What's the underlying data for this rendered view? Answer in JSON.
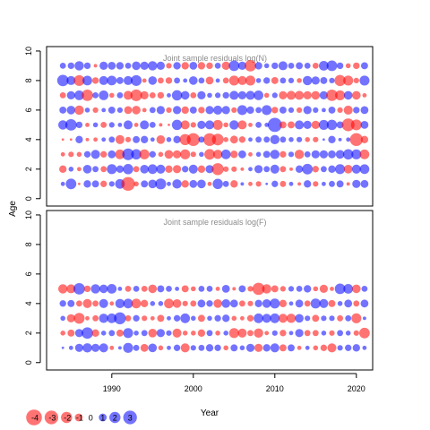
{
  "chart_data": [
    {
      "type": "scatter",
      "subtype": "bubble",
      "title": "Joint sample residuals log(N)",
      "xlabel": "Year",
      "ylabel": "Age",
      "xlim": [
        1982,
        2022
      ],
      "ylim": [
        -0.5,
        10.3
      ],
      "yticks": [
        0,
        2,
        4,
        6,
        8,
        10
      ],
      "years": [
        1984,
        2021
      ],
      "ages": [
        1,
        2,
        3,
        4,
        5,
        6,
        7,
        8,
        9
      ],
      "grid": false,
      "note": "residual matrix by age (rows) and year (columns); positive=blue, negative=red, bubble area proportional to magnitude",
      "residuals": [
        [
          0.3,
          1.8,
          -0.1,
          0.9,
          0.8,
          -0.7,
          0.5,
          1.5,
          -3.0,
          -0.4,
          0.8,
          1.2,
          1.9,
          0.3,
          1.4,
          -0.9,
          1.0,
          1.2,
          -0.3,
          1.7,
          0.6,
          -0.9,
          0.2,
          -0.3,
          -0.5,
          0.1,
          0.7,
          -0.6,
          0.3,
          -0.2,
          0.9,
          -0.5,
          0.3,
          0.6,
          0.8,
          -0.2,
          1.1,
          1.0
        ],
        [
          -0.9,
          0.4,
          -0.3,
          1.2,
          0.6,
          -0.6,
          1.6,
          0.9,
          1.7,
          -0.6,
          1.2,
          1.5,
          1.3,
          -0.9,
          -1.1,
          0.7,
          1.3,
          -0.9,
          1.1,
          -2.3,
          -0.5,
          -0.5,
          -0.2,
          0.3,
          1.1,
          0.6,
          1.3,
          -0.6,
          -0.2,
          0.9,
          1.8,
          -0.7,
          0.6,
          0.9,
          1.6,
          -1.2,
          1.3,
          1.5
        ],
        [
          -0.3,
          -0.5,
          -0.4,
          0.7,
          1.3,
          -0.7,
          1.0,
          -1.5,
          2.2,
          1.7,
          -1.6,
          0.7,
          -0.4,
          -1.2,
          -1.1,
          -1.6,
          -0.5,
          0.4,
          -1.8,
          -1.4,
          1.5,
          -0.9,
          1.0,
          -0.3,
          0.4,
          0.8,
          1.4,
          -0.7,
          0.5,
          -1.4,
          0.6,
          1.1,
          1.1,
          1.0,
          1.2,
          1.7,
          1.6,
          -1.5
        ],
        [
          -0.1,
          -0.1,
          0.9,
          -0.2,
          -0.3,
          0.3,
          0.6,
          -1.3,
          -0.5,
          0.8,
          0.9,
          0.3,
          -1.2,
          0.4,
          0.9,
          -2.0,
          -2.7,
          0.6,
          -2.6,
          -2.2,
          -0.4,
          -1.0,
          -0.7,
          0.3,
          0.6,
          0.6,
          1.4,
          0.6,
          0.4,
          0.5,
          -0.4,
          -0.5,
          0.1,
          0.9,
          0.2,
          0.3,
          -2.7,
          -0.9
        ],
        [
          1.4,
          2.1,
          0.7,
          -0.3,
          0.4,
          -0.6,
          0.5,
          0.3,
          1.3,
          -0.3,
          1.3,
          0.6,
          -0.2,
          -0.1,
          1.7,
          -1.3,
          -0.5,
          1.1,
          1.3,
          -1.6,
          -0.4,
          1.4,
          -1.3,
          -0.3,
          0.6,
          0.3,
          3.2,
          -0.8,
          -0.8,
          1.3,
          1.1,
          -1.1,
          1.6,
          1.7,
          0.8,
          -2.6,
          -1.9,
          1.0
        ],
        [
          0.8,
          1.2,
          -1.4,
          0.4,
          -0.5,
          0.3,
          0.8,
          0.5,
          -1.0,
          -1.2,
          -0.3,
          0.6,
          1.1,
          -0.5,
          1.1,
          -0.9,
          0.8,
          -0.7,
          1.1,
          1.3,
          1.1,
          -0.5,
          1.6,
          0.9,
          0.6,
          1.6,
          -0.7,
          0.8,
          0.5,
          -0.5,
          1.1,
          0.5,
          0.3,
          0.8,
          -0.5,
          -1.3,
          0.7,
          1.0
        ],
        [
          -0.6,
          1.1,
          1.5,
          -2.1,
          0.6,
          1.5,
          -0.4,
          0.6,
          -1.3,
          -2.2,
          -1.1,
          -0.6,
          -0.7,
          0.3,
          1.7,
          1.2,
          -0.6,
          1.1,
          0.4,
          0.5,
          0.7,
          1.3,
          1.1,
          1.3,
          1.5,
          -0.4,
          0.5,
          -1.1,
          -1.3,
          -1.3,
          -1.1,
          -1.2,
          1.1,
          -2.1,
          -1.6,
          1.2,
          -1.2,
          -0.3
        ],
        [
          2.1,
          1.3,
          -1.9,
          1.5,
          -0.7,
          1.3,
          1.5,
          0.8,
          1.3,
          1.9,
          -0.3,
          1.2,
          -0.6,
          -0.7,
          0.6,
          0.3,
          1.2,
          0.6,
          -1.0,
          0.3,
          -0.6,
          -1.6,
          -1.3,
          -1.6,
          0.4,
          0.7,
          -0.8,
          0.6,
          0.5,
          -0.4,
          1.4,
          1.1,
          0.8,
          0.5,
          -2.0,
          -1.6,
          -0.5,
          1.6
        ],
        [
          0.6,
          0.7,
          1.4,
          0.7,
          -0.2,
          1.1,
          1.0,
          0.9,
          0.6,
          1.2,
          1.1,
          1.4,
          1.1,
          -0.5,
          0.9,
          -0.9,
          1.0,
          -0.9,
          -0.7,
          0.6,
          -1.1,
          1.8,
          1.1,
          -2.1,
          0.9,
          0.4,
          0.7,
          1.3,
          0.6,
          0.8,
          0.6,
          -0.6,
          1.5,
          1.8,
          0.7,
          -0.4,
          -0.7,
          0.8
        ]
      ]
    },
    {
      "type": "scatter",
      "subtype": "bubble",
      "title": "Joint sample residuals log(F)",
      "xlabel": "Year",
      "ylabel": "Age",
      "xlim": [
        1982,
        2022
      ],
      "ylim": [
        -0.5,
        10.3
      ],
      "xticks": [
        1990,
        2000,
        2010,
        2020
      ],
      "yticks": [
        0,
        2,
        4,
        6,
        8,
        10
      ],
      "years": [
        1984,
        2021
      ],
      "ages": [
        1,
        2,
        3,
        4,
        5
      ],
      "grid": false,
      "note": "residual matrix by age (rows) and year (columns); positive=blue, negative=red",
      "residuals": [
        [
          0.1,
          0.3,
          1.1,
          1.4,
          1.1,
          1.3,
          -0.3,
          0.2,
          1.6,
          0.6,
          -1.0,
          1.2,
          -0.4,
          0.3,
          0.7,
          -1.3,
          0.5,
          0.6,
          0.9,
          0.7,
          -0.4,
          0.8,
          0.4,
          1.1,
          -1.1,
          0.9,
          1.3,
          -0.8,
          0.8,
          -0.3,
          0.3,
          -0.4,
          -0.7,
          -1.3,
          0.5,
          0.7,
          0.9,
          0.3
        ],
        [
          -0.4,
          -0.8,
          1.1,
          2.1,
          -0.9,
          0.4,
          0.6,
          -0.8,
          1.6,
          0.4,
          0.6,
          -1.2,
          1.1,
          0.5,
          -1.3,
          -0.4,
          -0.4,
          -0.9,
          0.6,
          -0.4,
          0.4,
          -1.6,
          -1.3,
          -0.6,
          -1.4,
          -0.3,
          0.5,
          -0.7,
          0.3,
          1.1,
          -0.6,
          -0.6,
          0.4,
          -0.5,
          0.6,
          0.4,
          -0.5,
          -1.8
        ],
        [
          0.4,
          -1.1,
          -1.9,
          -0.3,
          -0.6,
          1.4,
          1.5,
          2.3,
          -0.6,
          0.7,
          -0.5,
          -0.3,
          -0.8,
          0.3,
          0.7,
          1.5,
          0.4,
          -0.8,
          0.4,
          0.7,
          0.9,
          -0.4,
          -0.3,
          -0.7,
          1.5,
          1.3,
          1.5,
          -1.3,
          -1.4,
          1.2,
          0.5,
          -0.8,
          0.5,
          0.5,
          -0.6,
          0.6,
          -1.6,
          0.2
        ],
        [
          0.7,
          0.8,
          -0.6,
          -1.3,
          -0.6,
          1.3,
          -0.3,
          1.4,
          1.5,
          -1.5,
          -0.9,
          0.4,
          0.4,
          -1.5,
          -1.2,
          -0.5,
          -0.6,
          1.0,
          0.7,
          -1.2,
          1.2,
          1.0,
          -0.6,
          -0.5,
          0.9,
          1.2,
          1.6,
          -0.9,
          0.3,
          1.0,
          -0.6,
          1.6,
          1.3,
          -0.8,
          0.4,
          1.0,
          -0.6,
          1.0
        ],
        [
          -1.4,
          -1.3,
          2.1,
          -0.7,
          1.4,
          1.2,
          1.5,
          0.3,
          -0.6,
          0.6,
          -0.6,
          -1.2,
          0.8,
          0.6,
          0.3,
          -0.8,
          -0.4,
          0.6,
          0.6,
          -0.3,
          1.0,
          -0.2,
          0.8,
          -0.5,
          -2.4,
          -1.4,
          -0.8,
          -0.5,
          0.5,
          0.6,
          0.9,
          -0.4,
          -1.1,
          -0.3,
          1.8,
          1.5,
          -1.2,
          0.6
        ]
      ]
    }
  ],
  "legend": {
    "entries": [
      "-4",
      "-3",
      "-2",
      "-1",
      "0",
      "1",
      "2",
      "3"
    ],
    "values": [
      -4,
      -3,
      -2,
      -1,
      0,
      1,
      2,
      3
    ],
    "title": "Year"
  },
  "colors": {
    "negative": "#ff0000",
    "positive": "#0000ff",
    "bubble_alpha": 0.55
  }
}
